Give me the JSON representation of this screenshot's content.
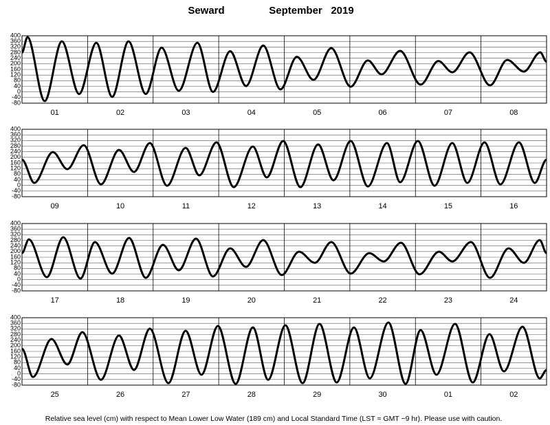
{
  "header": {
    "station": "Seward",
    "month": "September",
    "year": "2019"
  },
  "footnote": "Relative sea level (cm) with respect to Mean Lower Low Water (189 cm) and Local Standard Time (LST = GMT −9 hr). Please use with caution.",
  "chart_data": [
    {
      "type": "line",
      "color": "#000000",
      "xlim": [
        0,
        192
      ],
      "ylim": [
        -80,
        400
      ],
      "yticks": [
        400,
        360,
        320,
        280,
        240,
        200,
        160,
        120,
        80,
        40,
        0,
        -40,
        -80
      ],
      "categories": [
        "01",
        "02",
        "03",
        "04",
        "05",
        "06",
        "07",
        "08"
      ],
      "x": [
        0,
        2.0,
        8.3,
        14.6,
        20.9,
        27.2,
        33.0,
        39.0,
        45.3,
        51.1,
        57.4,
        64.2,
        69.9,
        76.2,
        82.0,
        88.3,
        94.6,
        100.6,
        106.7,
        113.2,
        120.3,
        126.6,
        131.6,
        138.4,
        145.9,
        152.4,
        157.5,
        163.8,
        171.3,
        177.6,
        183.7,
        189.7,
        192
      ],
      "values": [
        280,
        390,
        -65,
        360,
        -15,
        350,
        -35,
        360,
        -15,
        315,
        8,
        350,
        0,
        290,
        42,
        330,
        18,
        250,
        86,
        312,
        37,
        224,
        125,
        292,
        52,
        220,
        140,
        282,
        47,
        228,
        145,
        282,
        215
      ]
    },
    {
      "type": "line",
      "color": "#000000",
      "xlim": [
        0,
        192
      ],
      "ylim": [
        -80,
        400
      ],
      "yticks": [
        400,
        360,
        320,
        280,
        240,
        200,
        160,
        120,
        80,
        40,
        0,
        -40,
        -80
      ],
      "categories": [
        "09",
        "10",
        "11",
        "12",
        "13",
        "14",
        "15",
        "16"
      ],
      "x": [
        0,
        4.5,
        11.3,
        16.6,
        22.6,
        28.9,
        35.5,
        41.0,
        46.8,
        53.1,
        59.9,
        64.9,
        71.2,
        77.5,
        84.5,
        89.6,
        95.6,
        101.9,
        108.4,
        114.0,
        120.3,
        126.6,
        133.6,
        138.4,
        144.9,
        151.0,
        157.5,
        163.0,
        169.3,
        175.1,
        181.9,
        187.7,
        192
      ],
      "values": [
        184,
        18,
        238,
        116,
        287,
        8,
        253,
        96,
        302,
        -2,
        268,
        72,
        307,
        -12,
        277,
        57,
        317,
        -12,
        292,
        37,
        317,
        -7,
        302,
        23,
        317,
        -2,
        302,
        18,
        307,
        8,
        307,
        18,
        184
      ]
    },
    {
      "type": "line",
      "color": "#000000",
      "xlim": [
        0,
        192
      ],
      "ylim": [
        -80,
        400
      ],
      "yticks": [
        400,
        360,
        320,
        280,
        240,
        200,
        160,
        120,
        80,
        40,
        0,
        -40,
        -80
      ],
      "categories": [
        "17",
        "18",
        "19",
        "20",
        "21",
        "22",
        "23",
        "24"
      ],
      "x": [
        0,
        2.5,
        9.1,
        15.1,
        21.4,
        26.7,
        33.0,
        39.2,
        45.3,
        51.6,
        57.4,
        63.7,
        69.9,
        76.2,
        82.0,
        88.3,
        95.1,
        101.4,
        107.2,
        113.2,
        120.3,
        127.1,
        132.4,
        138.7,
        145.5,
        152.6,
        157.5,
        164.3,
        171.3,
        178.1,
        183.7,
        189.5,
        192
      ],
      "values": [
        189,
        287,
        18,
        302,
        8,
        268,
        43,
        297,
        13,
        248,
        67,
        292,
        23,
        223,
        91,
        282,
        33,
        199,
        120,
        268,
        43,
        189,
        130,
        263,
        38,
        199,
        130,
        268,
        13,
        223,
        120,
        282,
        189
      ]
    },
    {
      "type": "line",
      "color": "#000000",
      "xlim": [
        0,
        192
      ],
      "ylim": [
        -80,
        400
      ],
      "yticks": [
        400,
        360,
        320,
        280,
        240,
        200,
        160,
        120,
        80,
        40,
        0,
        -40,
        -80
      ],
      "categories": [
        "25",
        "26",
        "27",
        "28",
        "29",
        "30",
        "01",
        "02"
      ],
      "x": [
        0,
        4.0,
        10.8,
        16.6,
        22.1,
        28.9,
        35.5,
        41.0,
        46.8,
        53.6,
        59.9,
        65.7,
        71.7,
        78.2,
        84.5,
        90.1,
        96.4,
        102.7,
        108.9,
        115.2,
        121.5,
        127.3,
        134.1,
        140.4,
        145.9,
        151.7,
        158.5,
        165.0,
        171.1,
        176.4,
        183.2,
        189.5,
        192
      ],
      "values": [
        179,
        -22,
        248,
        67,
        297,
        -42,
        273,
        28,
        322,
        -66,
        307,
        -6,
        341,
        -71,
        331,
        -42,
        346,
        -66,
        356,
        -61,
        331,
        -32,
        366,
        -71,
        312,
        -6,
        356,
        -61,
        283,
        18,
        336,
        -32,
        28
      ]
    }
  ]
}
